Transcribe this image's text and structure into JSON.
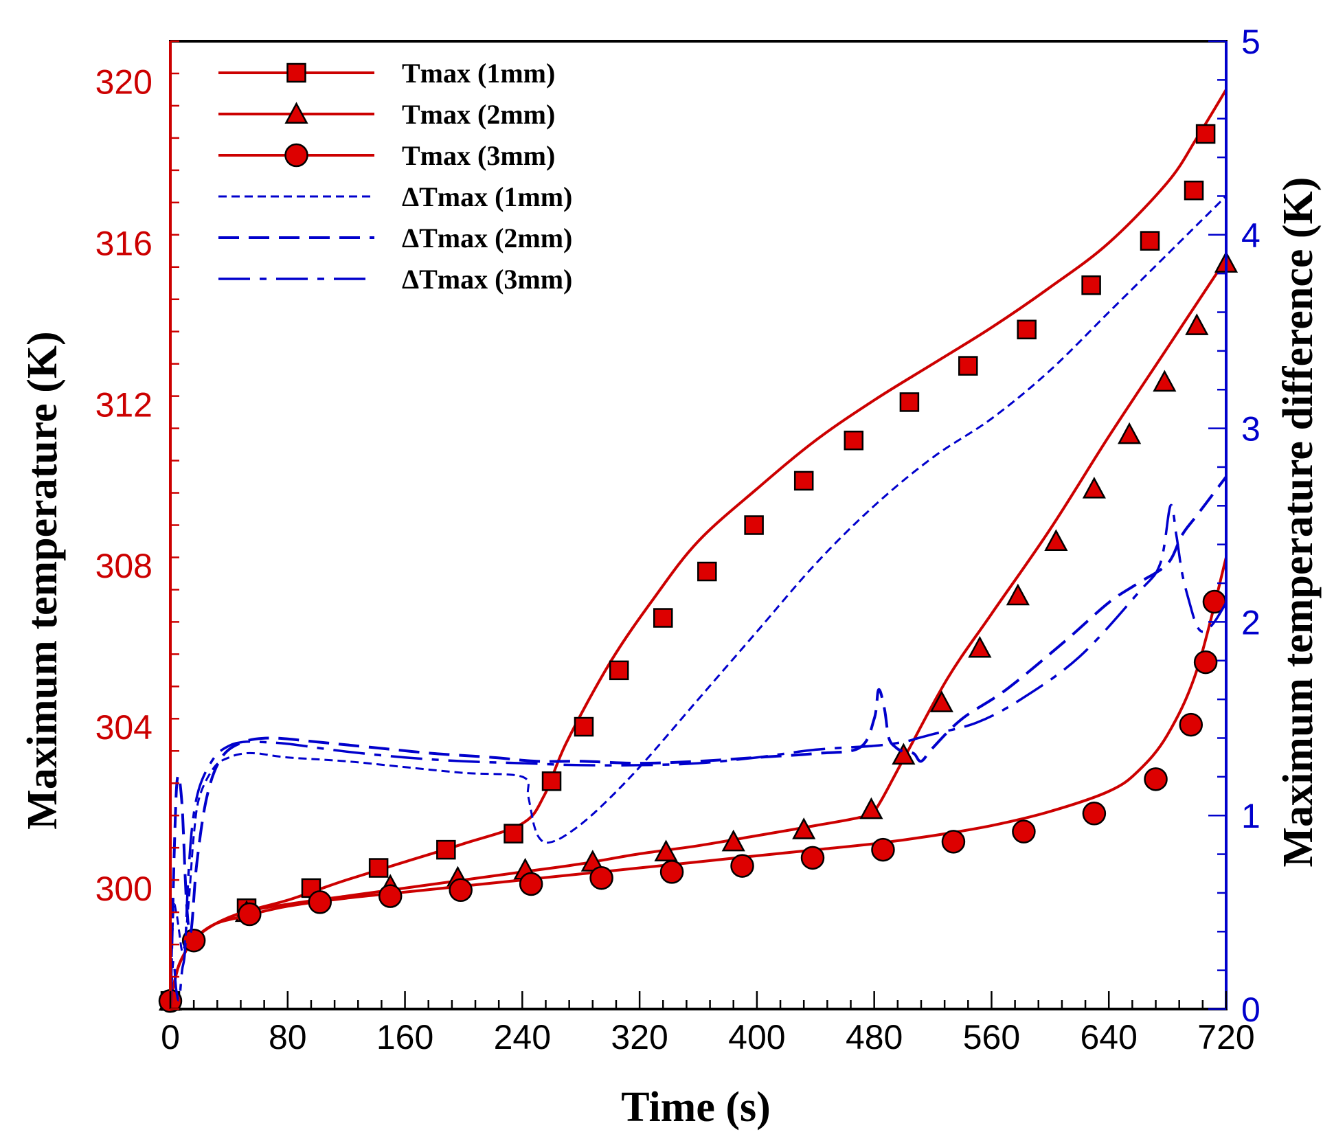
{
  "chart_data": {
    "type": "line",
    "title": "",
    "xlabel": "Time (s)",
    "ylabel": "Maximum temperature (K)",
    "y2label": "Maximum temperature difference (K)",
    "xlim": [
      0,
      720
    ],
    "ylim": [
      297,
      321
    ],
    "y2lim": [
      0,
      5
    ],
    "x_ticks": [
      0,
      80,
      160,
      240,
      320,
      400,
      480,
      560,
      640,
      720
    ],
    "y_ticks": [
      300,
      304,
      308,
      312,
      316,
      320
    ],
    "y2_ticks": [
      0,
      1,
      2,
      3,
      4,
      5
    ],
    "legend_position": "top-left",
    "colors": {
      "temperature": "#cc0000",
      "difference": "#0000cc",
      "axis_left": "#cc0000",
      "axis_right": "#0000cc",
      "marker_fill": "#dd0000"
    },
    "series": [
      {
        "name": "Tmax (1mm)",
        "axis": "left",
        "marker": "square",
        "line": "solid",
        "x": [
          0,
          5,
          10,
          15,
          30,
          50,
          80,
          100,
          120,
          160,
          200,
          240,
          255,
          270,
          300,
          330,
          360,
          400,
          440,
          480,
          520,
          560,
          600,
          640,
          680,
          700,
          720
        ],
        "y": [
          297.2,
          298.0,
          298.4,
          298.7,
          299.1,
          299.4,
          299.7,
          299.95,
          300.2,
          300.65,
          301.1,
          301.6,
          302.3,
          303.6,
          305.6,
          307.2,
          308.6,
          309.9,
          311.1,
          312.1,
          313.0,
          313.9,
          314.9,
          316.0,
          317.5,
          318.6,
          319.8
        ],
        "marker_x": [
          0,
          52,
          96,
          142,
          188,
          234,
          260,
          282,
          306,
          336,
          366,
          398,
          432,
          466,
          504,
          544,
          584,
          628,
          668,
          698,
          706
        ],
        "marker_y": [
          297.2,
          299.5,
          300.0,
          300.5,
          300.95,
          301.35,
          302.65,
          304.0,
          305.4,
          306.7,
          307.85,
          309.0,
          310.1,
          311.1,
          312.05,
          312.95,
          313.85,
          314.95,
          316.05,
          317.3,
          318.7
        ]
      },
      {
        "name": "Tmax (2mm)",
        "axis": "left",
        "marker": "triangle",
        "line": "solid",
        "x": [
          0,
          5,
          10,
          15,
          30,
          50,
          80,
          120,
          160,
          200,
          240,
          280,
          320,
          360,
          400,
          440,
          470,
          480,
          500,
          530,
          560,
          600,
          640,
          680,
          700,
          720
        ],
        "y": [
          297.2,
          298.0,
          298.4,
          298.7,
          299.1,
          299.4,
          299.6,
          299.8,
          300.0,
          300.2,
          300.4,
          300.6,
          300.85,
          301.05,
          301.3,
          301.55,
          301.75,
          301.9,
          303.2,
          305.2,
          306.8,
          308.9,
          311.2,
          313.4,
          314.5,
          315.6
        ],
        "marker_x": [
          0,
          52,
          150,
          196,
          242,
          288,
          338,
          384,
          432,
          478,
          500,
          526,
          552,
          578,
          604,
          630,
          654,
          678,
          700,
          720
        ],
        "marker_y": [
          297.2,
          299.4,
          300.05,
          300.25,
          300.45,
          300.65,
          300.9,
          301.15,
          301.45,
          301.95,
          303.3,
          304.6,
          305.95,
          307.25,
          308.6,
          309.9,
          311.25,
          312.55,
          313.95,
          315.5
        ]
      },
      {
        "name": "Tmax (3mm)",
        "axis": "left",
        "marker": "circle",
        "line": "solid",
        "x": [
          0,
          5,
          10,
          15,
          30,
          50,
          80,
          120,
          160,
          200,
          240,
          280,
          320,
          360,
          400,
          440,
          480,
          520,
          560,
          600,
          640,
          660,
          680,
          700,
          720
        ],
        "y": [
          297.2,
          298.0,
          298.4,
          298.7,
          299.1,
          299.3,
          299.55,
          299.75,
          299.9,
          300.05,
          300.2,
          300.35,
          300.5,
          300.65,
          300.8,
          300.95,
          301.1,
          301.3,
          301.55,
          301.9,
          302.4,
          302.9,
          303.8,
          305.4,
          308.2
        ],
        "marker_x": [
          0,
          16,
          54,
          102,
          150,
          198,
          246,
          294,
          342,
          390,
          438,
          486,
          534,
          582,
          630,
          672,
          696,
          706,
          712
        ],
        "marker_y": [
          297.2,
          298.7,
          299.35,
          299.65,
          299.8,
          299.95,
          300.1,
          300.25,
          300.4,
          300.55,
          300.75,
          300.95,
          301.15,
          301.4,
          301.85,
          302.7,
          304.05,
          305.6,
          307.1
        ]
      },
      {
        "name": "ΔTmax (1mm)",
        "axis": "right",
        "marker": "none",
        "line": "short-dash",
        "x": [
          0,
          2,
          4,
          6,
          8,
          10,
          13,
          16,
          20,
          30,
          40,
          50,
          60,
          80,
          120,
          160,
          200,
          240,
          244,
          248,
          252,
          258,
          270,
          290,
          320,
          360,
          400,
          440,
          480,
          520,
          560,
          600,
          640,
          680,
          700,
          720
        ],
        "y": [
          0.0,
          0.5,
          0.5,
          0.4,
          0.3,
          0.35,
          0.6,
          0.9,
          1.1,
          1.25,
          1.3,
          1.32,
          1.32,
          1.3,
          1.28,
          1.25,
          1.22,
          1.2,
          1.1,
          0.95,
          0.88,
          0.86,
          0.9,
          1.02,
          1.25,
          1.6,
          1.95,
          2.3,
          2.6,
          2.85,
          3.05,
          3.3,
          3.6,
          3.9,
          4.05,
          4.2
        ]
      },
      {
        "name": "ΔTmax (2mm)",
        "axis": "right",
        "marker": "none",
        "line": "long-dash",
        "x": [
          0,
          3,
          5,
          8,
          11,
          14,
          18,
          25,
          35,
          50,
          70,
          100,
          140,
          180,
          220,
          250,
          280,
          320,
          360,
          400,
          440,
          470,
          480,
          483,
          487,
          490,
          495,
          500,
          507,
          512,
          520,
          540,
          570,
          610,
          640,
          660,
          680,
          690,
          700,
          720
        ],
        "y": [
          0.0,
          0.9,
          1.2,
          1.05,
          0.55,
          0.4,
          0.75,
          1.1,
          1.3,
          1.38,
          1.4,
          1.38,
          1.35,
          1.32,
          1.3,
          1.28,
          1.28,
          1.27,
          1.28,
          1.3,
          1.32,
          1.35,
          1.5,
          1.65,
          1.55,
          1.4,
          1.35,
          1.33,
          1.32,
          1.28,
          1.35,
          1.5,
          1.65,
          1.9,
          2.1,
          2.2,
          2.3,
          2.45,
          2.55,
          2.75
        ]
      },
      {
        "name": "ΔTmax (3mm)",
        "axis": "right",
        "marker": "none",
        "line": "dash-dot",
        "x": [
          0,
          2,
          4,
          6,
          8,
          10,
          12,
          15,
          20,
          30,
          40,
          50,
          60,
          80,
          120,
          160,
          200,
          240,
          280,
          320,
          360,
          400,
          440,
          480,
          500,
          510,
          520,
          550,
          580,
          620,
          660,
          675,
          682,
          686,
          690,
          695,
          700,
          705,
          712,
          720
        ],
        "y": [
          0.0,
          0.25,
          0.1,
          0.05,
          0.2,
          0.3,
          0.65,
          0.95,
          1.15,
          1.3,
          1.36,
          1.38,
          1.38,
          1.37,
          1.33,
          1.3,
          1.28,
          1.27,
          1.26,
          1.26,
          1.27,
          1.3,
          1.34,
          1.36,
          1.38,
          1.4,
          1.42,
          1.48,
          1.6,
          1.82,
          2.15,
          2.3,
          2.6,
          2.45,
          2.25,
          2.1,
          1.98,
          1.95,
          2.0,
          2.1
        ]
      }
    ]
  }
}
